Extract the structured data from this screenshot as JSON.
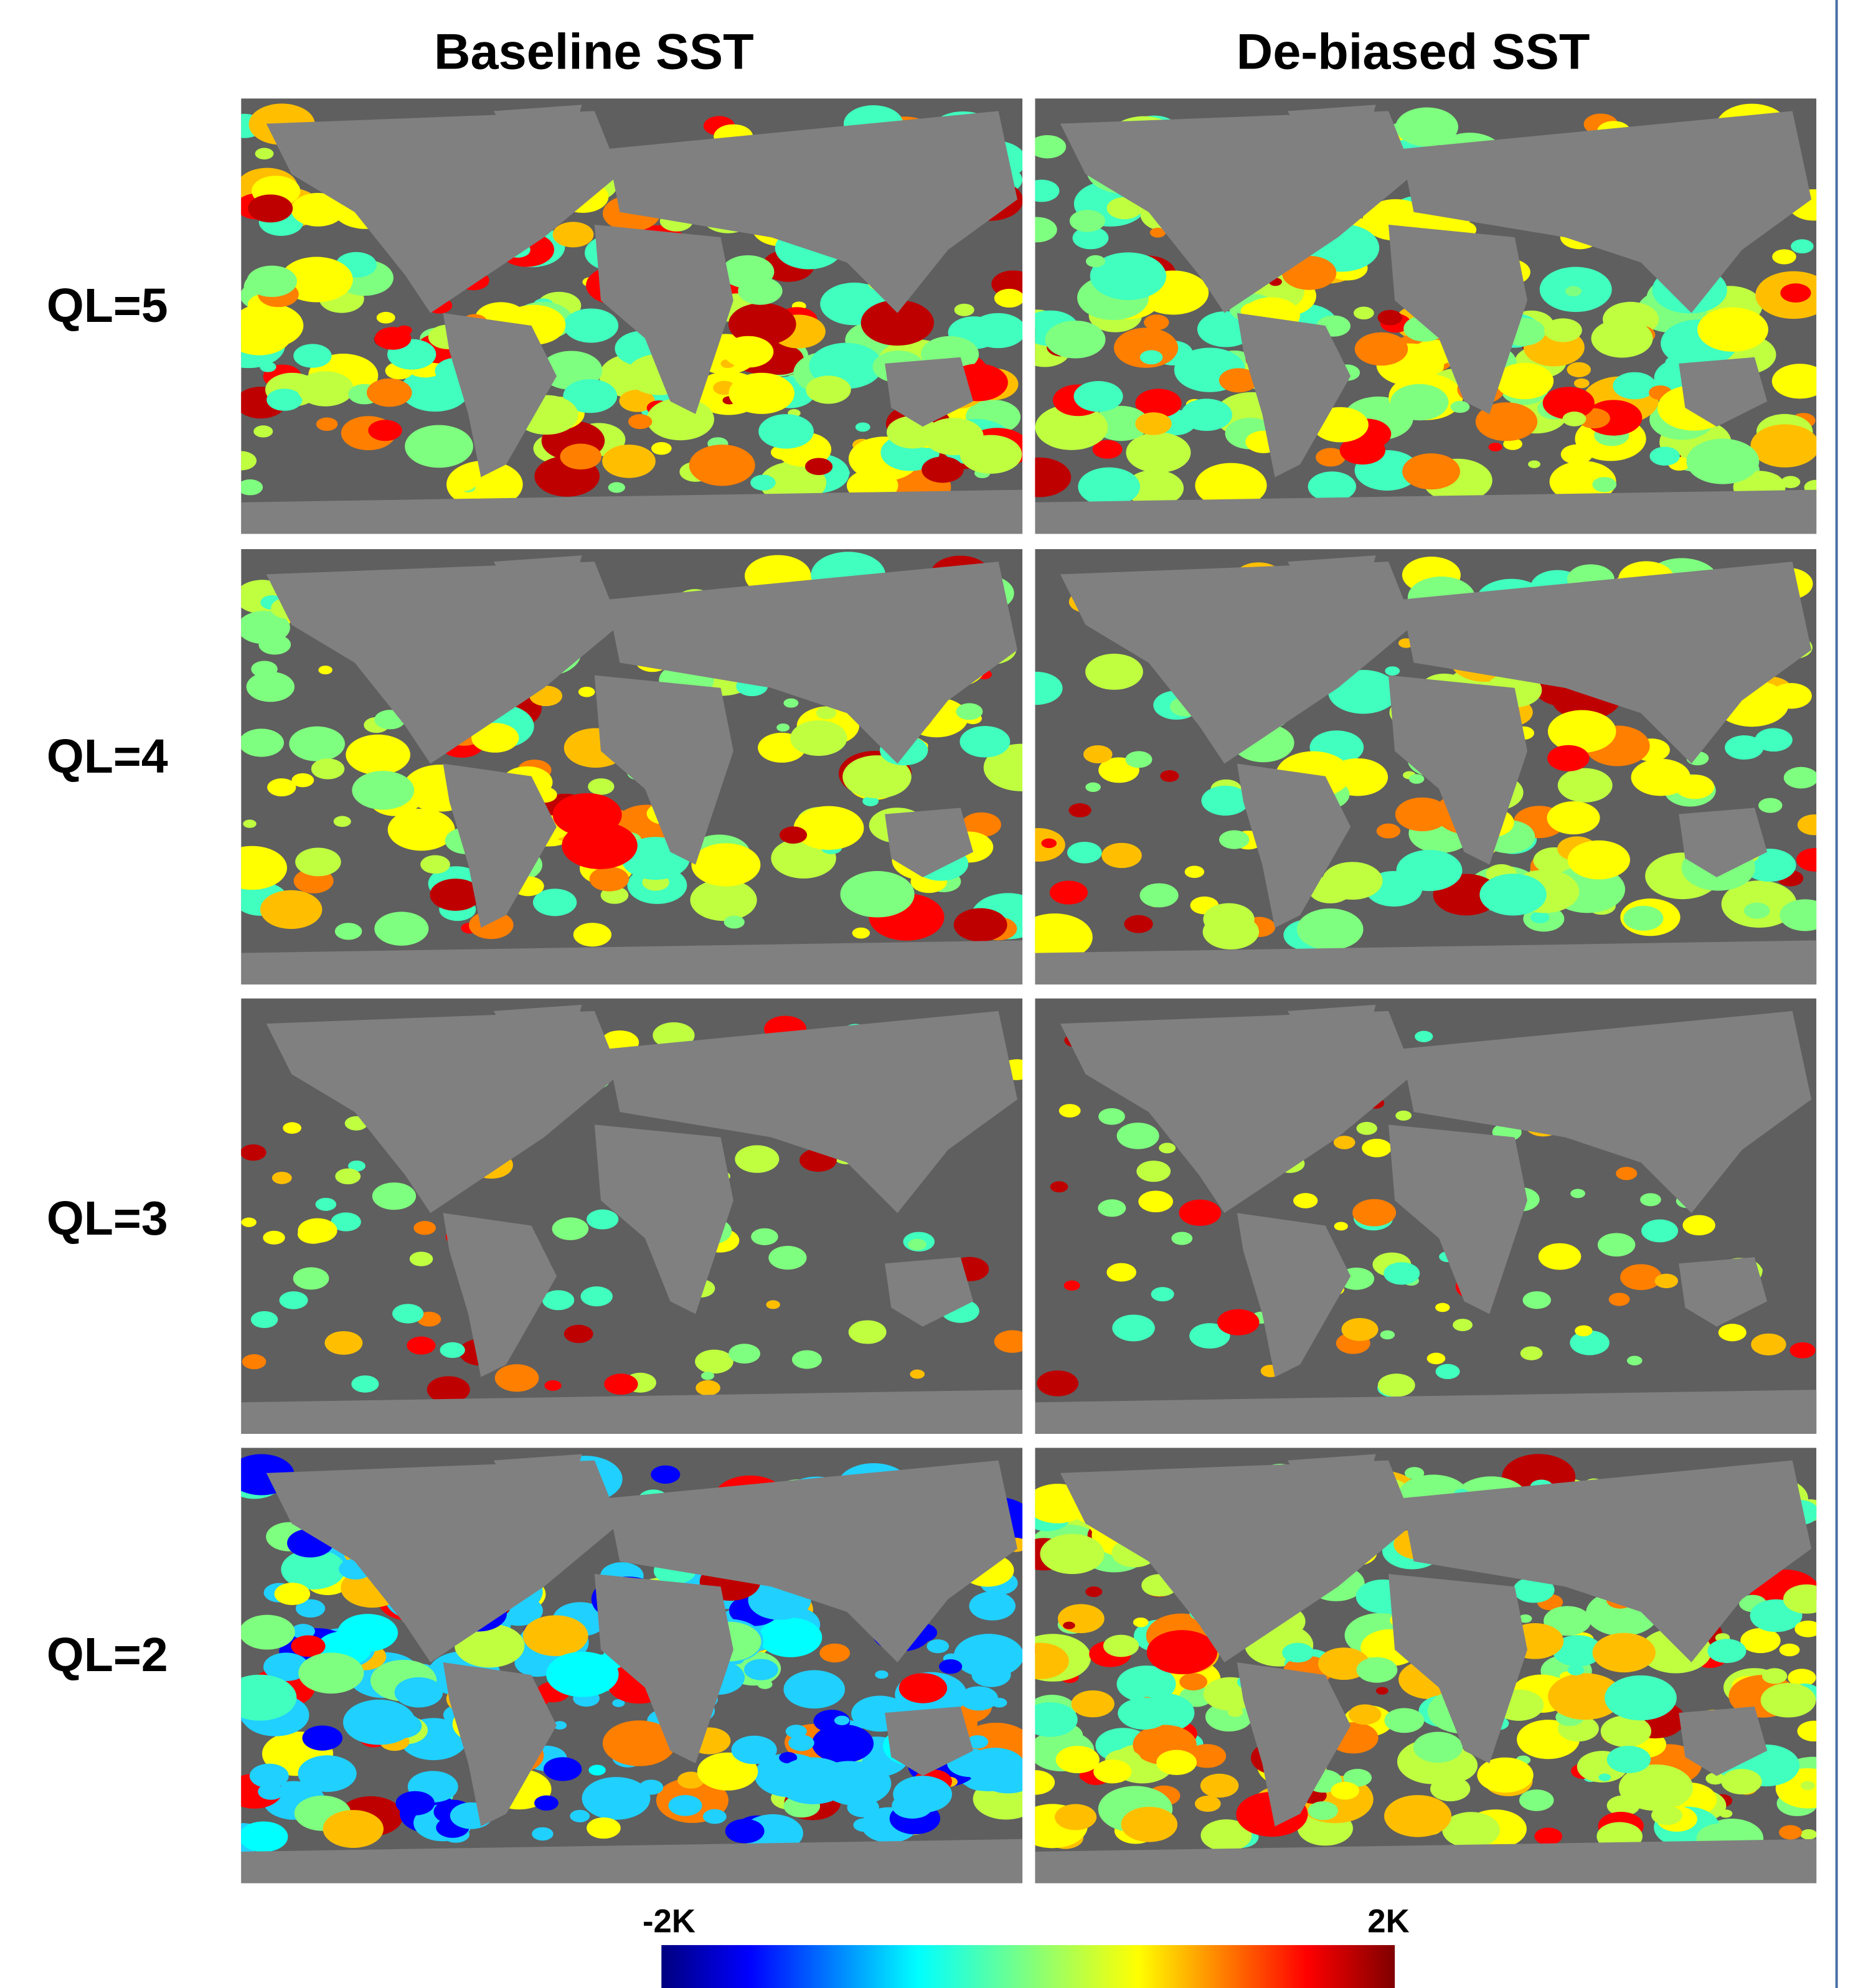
{
  "column_titles": [
    "Baseline SST",
    "De-biased SST"
  ],
  "row_labels": [
    "QL=5",
    "QL=4",
    "QL=3",
    "QL=2"
  ],
  "colorbar": {
    "min_label": "-2K",
    "max_label": "2K"
  }
}
